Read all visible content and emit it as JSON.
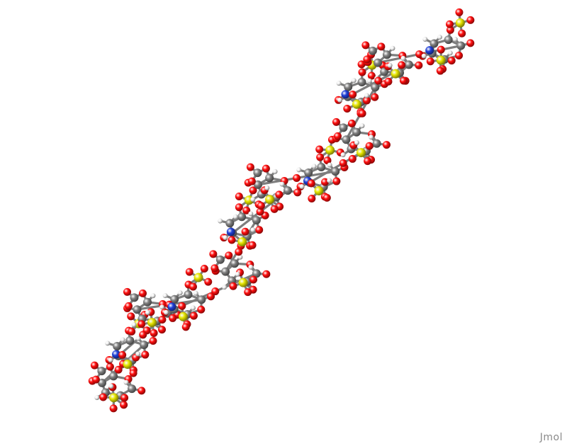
{
  "viewer": {
    "watermark": "Jmol"
  },
  "colors": {
    "background": "#ffffff",
    "carbon": "#808080",
    "oxygen": "#ff0d0d",
    "sulfur": "#e6e600",
    "nitrogen": "#2040d8",
    "hydrogen": "#f2f2f2"
  }
}
